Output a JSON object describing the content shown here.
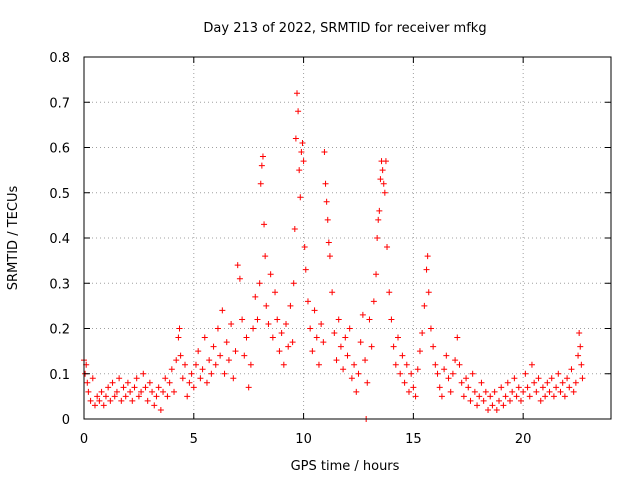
{
  "chart_data": {
    "type": "scatter",
    "title": "Day 213 of 2022, SRMTID for receiver mfkg",
    "xlabel": "GPS time / hours",
    "ylabel": "SRMTID / TECUs",
    "xlim": [
      0,
      24
    ],
    "ylim": [
      0,
      0.8
    ],
    "x_ticks": [
      0,
      5,
      10,
      15,
      20
    ],
    "x_tick_labels": [
      "0",
      "5",
      "10",
      "15",
      "20"
    ],
    "y_ticks": [
      0,
      0.1,
      0.2,
      0.3,
      0.4,
      0.5,
      0.6,
      0.7,
      0.8
    ],
    "y_tick_labels": [
      "0",
      "0.1",
      "0.2",
      "0.3",
      "0.4",
      "0.5",
      "0.6",
      "0.7",
      "0.8"
    ],
    "grid": true,
    "marker": "plus",
    "color": "#ff0000",
    "series": [
      {
        "name": "SRMTID",
        "points": [
          [
            0.0,
            0.13
          ],
          [
            0.05,
            0.1
          ],
          [
            0.1,
            0.12
          ],
          [
            0.15,
            0.08
          ],
          [
            0.2,
            0.06
          ],
          [
            0.3,
            0.04
          ],
          [
            0.4,
            0.09
          ],
          [
            0.5,
            0.03
          ],
          [
            0.6,
            0.05
          ],
          [
            0.7,
            0.04
          ],
          [
            0.8,
            0.06
          ],
          [
            0.9,
            0.03
          ],
          [
            1.0,
            0.05
          ],
          [
            1.1,
            0.07
          ],
          [
            1.2,
            0.04
          ],
          [
            1.3,
            0.08
          ],
          [
            1.4,
            0.05
          ],
          [
            1.5,
            0.06
          ],
          [
            1.6,
            0.09
          ],
          [
            1.7,
            0.04
          ],
          [
            1.8,
            0.07
          ],
          [
            1.9,
            0.05
          ],
          [
            2.0,
            0.08
          ],
          [
            2.1,
            0.06
          ],
          [
            2.2,
            0.04
          ],
          [
            2.3,
            0.07
          ],
          [
            2.4,
            0.09
          ],
          [
            2.5,
            0.05
          ],
          [
            2.6,
            0.06
          ],
          [
            2.7,
            0.1
          ],
          [
            2.8,
            0.07
          ],
          [
            2.9,
            0.04
          ],
          [
            3.0,
            0.08
          ],
          [
            3.1,
            0.06
          ],
          [
            3.2,
            0.03
          ],
          [
            3.3,
            0.05
          ],
          [
            3.4,
            0.07
          ],
          [
            3.5,
            0.02
          ],
          [
            3.6,
            0.06
          ],
          [
            3.7,
            0.09
          ],
          [
            3.8,
            0.05
          ],
          [
            3.9,
            0.08
          ],
          [
            4.0,
            0.11
          ],
          [
            4.1,
            0.06
          ],
          [
            4.2,
            0.13
          ],
          [
            4.3,
            0.18
          ],
          [
            4.35,
            0.2
          ],
          [
            4.4,
            0.14
          ],
          [
            4.5,
            0.09
          ],
          [
            4.6,
            0.12
          ],
          [
            4.7,
            0.05
          ],
          [
            4.8,
            0.08
          ],
          [
            4.9,
            0.1
          ],
          [
            5.0,
            0.07
          ],
          [
            5.1,
            0.12
          ],
          [
            5.2,
            0.15
          ],
          [
            5.3,
            0.09
          ],
          [
            5.4,
            0.11
          ],
          [
            5.5,
            0.18
          ],
          [
            5.6,
            0.08
          ],
          [
            5.7,
            0.13
          ],
          [
            5.8,
            0.1
          ],
          [
            5.9,
            0.16
          ],
          [
            6.0,
            0.12
          ],
          [
            6.1,
            0.2
          ],
          [
            6.2,
            0.14
          ],
          [
            6.3,
            0.24
          ],
          [
            6.4,
            0.1
          ],
          [
            6.5,
            0.17
          ],
          [
            6.6,
            0.13
          ],
          [
            6.7,
            0.21
          ],
          [
            6.8,
            0.09
          ],
          [
            6.9,
            0.15
          ],
          [
            7.0,
            0.34
          ],
          [
            7.1,
            0.31
          ],
          [
            7.2,
            0.22
          ],
          [
            7.3,
            0.14
          ],
          [
            7.4,
            0.18
          ],
          [
            7.5,
            0.07
          ],
          [
            7.6,
            0.12
          ],
          [
            7.7,
            0.2
          ],
          [
            7.8,
            0.27
          ],
          [
            7.9,
            0.22
          ],
          [
            8.0,
            0.3
          ],
          [
            8.05,
            0.52
          ],
          [
            8.1,
            0.56
          ],
          [
            8.15,
            0.58
          ],
          [
            8.2,
            0.43
          ],
          [
            8.25,
            0.36
          ],
          [
            8.3,
            0.25
          ],
          [
            8.4,
            0.21
          ],
          [
            8.5,
            0.32
          ],
          [
            8.6,
            0.18
          ],
          [
            8.7,
            0.28
          ],
          [
            8.8,
            0.22
          ],
          [
            8.9,
            0.15
          ],
          [
            9.0,
            0.19
          ],
          [
            9.1,
            0.12
          ],
          [
            9.2,
            0.21
          ],
          [
            9.3,
            0.16
          ],
          [
            9.4,
            0.25
          ],
          [
            9.5,
            0.17
          ],
          [
            9.55,
            0.3
          ],
          [
            9.6,
            0.42
          ],
          [
            9.65,
            0.62
          ],
          [
            9.7,
            0.72
          ],
          [
            9.75,
            0.68
          ],
          [
            9.8,
            0.55
          ],
          [
            9.85,
            0.49
          ],
          [
            9.9,
            0.59
          ],
          [
            9.95,
            0.61
          ],
          [
            10.0,
            0.57
          ],
          [
            10.05,
            0.38
          ],
          [
            10.1,
            0.33
          ],
          [
            10.2,
            0.26
          ],
          [
            10.3,
            0.2
          ],
          [
            10.4,
            0.15
          ],
          [
            10.5,
            0.24
          ],
          [
            10.6,
            0.18
          ],
          [
            10.7,
            0.12
          ],
          [
            10.8,
            0.21
          ],
          [
            10.9,
            0.17
          ],
          [
            10.95,
            0.59
          ],
          [
            11.0,
            0.52
          ],
          [
            11.05,
            0.48
          ],
          [
            11.1,
            0.44
          ],
          [
            11.15,
            0.39
          ],
          [
            11.2,
            0.36
          ],
          [
            11.3,
            0.28
          ],
          [
            11.4,
            0.19
          ],
          [
            11.5,
            0.13
          ],
          [
            11.6,
            0.22
          ],
          [
            11.7,
            0.16
          ],
          [
            11.8,
            0.11
          ],
          [
            11.9,
            0.18
          ],
          [
            12.0,
            0.14
          ],
          [
            12.1,
            0.2
          ],
          [
            12.2,
            0.09
          ],
          [
            12.3,
            0.12
          ],
          [
            12.4,
            0.06
          ],
          [
            12.5,
            0.1
          ],
          [
            12.6,
            0.17
          ],
          [
            12.7,
            0.23
          ],
          [
            12.8,
            0.13
          ],
          [
            12.85,
            0.0
          ],
          [
            12.9,
            0.08
          ],
          [
            13.0,
            0.22
          ],
          [
            13.1,
            0.16
          ],
          [
            13.2,
            0.26
          ],
          [
            13.3,
            0.32
          ],
          [
            13.35,
            0.4
          ],
          [
            13.4,
            0.44
          ],
          [
            13.45,
            0.46
          ],
          [
            13.5,
            0.53
          ],
          [
            13.55,
            0.57
          ],
          [
            13.6,
            0.55
          ],
          [
            13.65,
            0.52
          ],
          [
            13.7,
            0.5
          ],
          [
            13.75,
            0.57
          ],
          [
            13.8,
            0.38
          ],
          [
            13.9,
            0.28
          ],
          [
            14.0,
            0.22
          ],
          [
            14.1,
            0.16
          ],
          [
            14.2,
            0.12
          ],
          [
            14.3,
            0.18
          ],
          [
            14.4,
            0.1
          ],
          [
            14.5,
            0.14
          ],
          [
            14.6,
            0.08
          ],
          [
            14.7,
            0.12
          ],
          [
            14.8,
            0.06
          ],
          [
            14.9,
            0.1
          ],
          [
            15.0,
            0.07
          ],
          [
            15.1,
            0.05
          ],
          [
            15.2,
            0.11
          ],
          [
            15.3,
            0.15
          ],
          [
            15.4,
            0.19
          ],
          [
            15.5,
            0.25
          ],
          [
            15.6,
            0.33
          ],
          [
            15.65,
            0.36
          ],
          [
            15.7,
            0.28
          ],
          [
            15.8,
            0.2
          ],
          [
            15.9,
            0.16
          ],
          [
            16.0,
            0.12
          ],
          [
            16.1,
            0.1
          ],
          [
            16.2,
            0.07
          ],
          [
            16.3,
            0.05
          ],
          [
            16.4,
            0.11
          ],
          [
            16.5,
            0.14
          ],
          [
            16.6,
            0.09
          ],
          [
            16.7,
            0.06
          ],
          [
            16.8,
            0.1
          ],
          [
            16.9,
            0.13
          ],
          [
            17.0,
            0.18
          ],
          [
            17.1,
            0.12
          ],
          [
            17.2,
            0.08
          ],
          [
            17.3,
            0.05
          ],
          [
            17.4,
            0.09
          ],
          [
            17.5,
            0.07
          ],
          [
            17.6,
            0.04
          ],
          [
            17.7,
            0.1
          ],
          [
            17.8,
            0.06
          ],
          [
            17.9,
            0.03
          ],
          [
            18.0,
            0.05
          ],
          [
            18.1,
            0.08
          ],
          [
            18.2,
            0.04
          ],
          [
            18.3,
            0.06
          ],
          [
            18.4,
            0.02
          ],
          [
            18.5,
            0.05
          ],
          [
            18.6,
            0.03
          ],
          [
            18.7,
            0.06
          ],
          [
            18.8,
            0.02
          ],
          [
            18.9,
            0.04
          ],
          [
            19.0,
            0.07
          ],
          [
            19.1,
            0.03
          ],
          [
            19.2,
            0.05
          ],
          [
            19.3,
            0.08
          ],
          [
            19.4,
            0.04
          ],
          [
            19.5,
            0.06
          ],
          [
            19.6,
            0.09
          ],
          [
            19.7,
            0.05
          ],
          [
            19.8,
            0.07
          ],
          [
            19.9,
            0.04
          ],
          [
            20.0,
            0.06
          ],
          [
            20.1,
            0.1
          ],
          [
            20.2,
            0.07
          ],
          [
            20.3,
            0.05
          ],
          [
            20.4,
            0.12
          ],
          [
            20.5,
            0.08
          ],
          [
            20.6,
            0.06
          ],
          [
            20.7,
            0.09
          ],
          [
            20.8,
            0.04
          ],
          [
            20.9,
            0.07
          ],
          [
            21.0,
            0.05
          ],
          [
            21.1,
            0.08
          ],
          [
            21.2,
            0.06
          ],
          [
            21.3,
            0.09
          ],
          [
            21.4,
            0.05
          ],
          [
            21.5,
            0.07
          ],
          [
            21.6,
            0.1
          ],
          [
            21.7,
            0.06
          ],
          [
            21.8,
            0.08
          ],
          [
            21.9,
            0.05
          ],
          [
            22.0,
            0.09
          ],
          [
            22.1,
            0.07
          ],
          [
            22.2,
            0.11
          ],
          [
            22.3,
            0.06
          ],
          [
            22.4,
            0.08
          ],
          [
            22.5,
            0.14
          ],
          [
            22.55,
            0.19
          ],
          [
            22.6,
            0.16
          ],
          [
            22.65,
            0.12
          ],
          [
            22.7,
            0.09
          ]
        ]
      }
    ]
  }
}
